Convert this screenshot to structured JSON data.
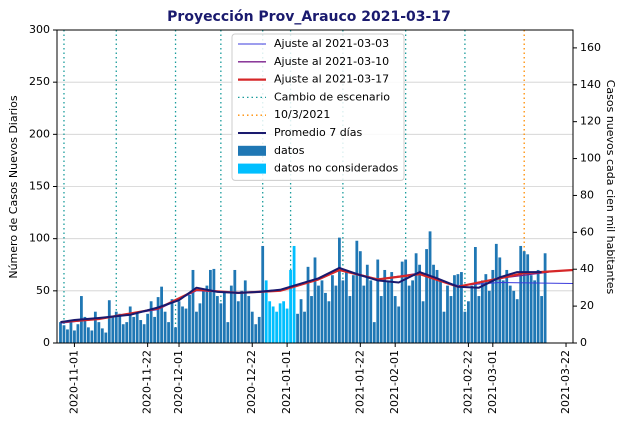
{
  "chart_data": {
    "type": "bar",
    "title": "Proyección Prov_Arauco 2021-03-17",
    "y_label": "Número de Casos Nuevos Diarios",
    "y2_label": "Casos nuevos cada cien mil habitantes",
    "xlim": [
      "2020-10-27",
      "2021-03-24"
    ],
    "xticks": [
      "2020-11-01",
      "2020-11-22",
      "2020-12-01",
      "2020-12-22",
      "2021-01-01",
      "2021-01-22",
      "2021-02-01",
      "2021-02-22",
      "2021-03-01",
      "2021-03-22"
    ],
    "ylim": [
      0,
      300
    ],
    "yticks": [
      0,
      50,
      100,
      150,
      200,
      250,
      300
    ],
    "y2lim": [
      0,
      169.7
    ],
    "y2ticks": [
      0,
      20,
      40,
      60,
      80,
      100,
      120,
      140,
      160
    ],
    "grid": true,
    "legend": "upper center",
    "series": [
      {
        "name": "Ajuste al 2021-03-03",
        "type": "line",
        "color": "#3b3bdc",
        "linewidth": 1,
        "x": [
          "2020-10-28",
          "2020-11-08",
          "2020-11-25",
          "2020-12-06",
          "2020-12-18",
          "2020-12-30",
          "2021-01-10",
          "2021-01-16",
          "2021-01-27",
          "2021-02-08",
          "2021-02-19",
          "2021-03-03",
          "2021-03-24"
        ],
        "values": [
          19,
          23,
          32,
          50,
          48,
          51,
          61,
          70,
          61,
          66,
          55,
          58,
          57
        ]
      },
      {
        "name": "Ajuste al 2021-03-10",
        "type": "line",
        "color": "#7b1f8c",
        "linewidth": 1.3,
        "x": [
          "2020-10-28",
          "2020-11-08",
          "2020-11-25",
          "2020-12-06",
          "2020-12-18",
          "2020-12-30",
          "2021-01-10",
          "2021-01-16",
          "2021-01-27",
          "2021-02-08",
          "2021-02-19",
          "2021-03-03",
          "2021-03-17"
        ],
        "values": [
          20,
          23,
          33,
          51,
          48,
          51,
          61,
          71,
          61,
          67,
          54,
          62,
          68
        ]
      },
      {
        "name": "Ajuste al 2021-03-17",
        "type": "line",
        "color": "#d62728",
        "linewidth": 2.2,
        "x": [
          "2020-10-28",
          "2020-11-08",
          "2020-11-25",
          "2020-12-06",
          "2020-12-18",
          "2020-12-30",
          "2021-01-10",
          "2021-01-16",
          "2021-01-27",
          "2021-02-08",
          "2021-02-19",
          "2021-03-03",
          "2021-03-10",
          "2021-03-24"
        ],
        "values": [
          20,
          23,
          33,
          51,
          48,
          50,
          61,
          70,
          61,
          66,
          54,
          62,
          67,
          70
        ]
      },
      {
        "name": "Cambio de escenario",
        "type": "vline",
        "color": "#1a9c9c",
        "x": [
          "2020-10-29",
          "2020-11-13",
          "2020-11-30",
          "2020-12-13",
          "2020-12-25",
          "2021-01-02",
          "2021-01-17",
          "2021-02-04",
          "2021-02-21"
        ]
      },
      {
        "name": "10/3/2021",
        "type": "vline",
        "color": "#ff8c00",
        "x": [
          "2021-03-10"
        ]
      },
      {
        "name": "Promedio 7 días",
        "type": "line",
        "color": "#1a1a6e",
        "linewidth": 2,
        "x": [
          "2020-10-28",
          "2020-11-01",
          "2020-11-08",
          "2020-11-17",
          "2020-11-25",
          "2020-12-01",
          "2020-12-06",
          "2020-12-12",
          "2020-12-18",
          "2020-12-24",
          "2020-12-30",
          "2021-01-04",
          "2021-01-10",
          "2021-01-16",
          "2021-01-22",
          "2021-01-27",
          "2021-02-02",
          "2021-02-08",
          "2021-02-13",
          "2021-02-19",
          "2021-02-25",
          "2021-03-03",
          "2021-03-08",
          "2021-03-15"
        ],
        "values": [
          20,
          22,
          24,
          27,
          34,
          41,
          53,
          49,
          48,
          49,
          51,
          56,
          62,
          72,
          65,
          60,
          58,
          68,
          62,
          54,
          53,
          63,
          68,
          68
        ]
      },
      {
        "name": "datos",
        "type": "bar",
        "color": "#1f77b4",
        "x": [
          "2020-10-28",
          "2020-10-29",
          "2020-10-30",
          "2020-10-31",
          "2020-11-01",
          "2020-11-02",
          "2020-11-03",
          "2020-11-04",
          "2020-11-05",
          "2020-11-06",
          "2020-11-07",
          "2020-11-08",
          "2020-11-09",
          "2020-11-10",
          "2020-11-11",
          "2020-11-12",
          "2020-11-13",
          "2020-11-14",
          "2020-11-15",
          "2020-11-16",
          "2020-11-17",
          "2020-11-18",
          "2020-11-19",
          "2020-11-20",
          "2020-11-21",
          "2020-11-22",
          "2020-11-23",
          "2020-11-24",
          "2020-11-25",
          "2020-11-26",
          "2020-11-27",
          "2020-11-28",
          "2020-11-29",
          "2020-11-30",
          "2020-12-01",
          "2020-12-02",
          "2020-12-03",
          "2020-12-04",
          "2020-12-05",
          "2020-12-06",
          "2020-12-07",
          "2020-12-08",
          "2020-12-09",
          "2020-12-10",
          "2020-12-11",
          "2020-12-12",
          "2020-12-13",
          "2020-12-14",
          "2020-12-15",
          "2020-12-16",
          "2020-12-17",
          "2020-12-18",
          "2020-12-19",
          "2020-12-20",
          "2020-12-21",
          "2020-12-22",
          "2020-12-23",
          "2020-12-24",
          "2020-12-25",
          "2021-01-04",
          "2021-01-05",
          "2021-01-06",
          "2021-01-07",
          "2021-01-08",
          "2021-01-09",
          "2021-01-10",
          "2021-01-11",
          "2021-01-12",
          "2021-01-13",
          "2021-01-14",
          "2021-01-15",
          "2021-01-16",
          "2021-01-17",
          "2021-01-18",
          "2021-01-19",
          "2021-01-20",
          "2021-01-21",
          "2021-01-22",
          "2021-01-23",
          "2021-01-24",
          "2021-01-25",
          "2021-01-26",
          "2021-01-27",
          "2021-01-28",
          "2021-01-29",
          "2021-01-30",
          "2021-01-31",
          "2021-02-01",
          "2021-02-02",
          "2021-02-03",
          "2021-02-04",
          "2021-02-05",
          "2021-02-06",
          "2021-02-07",
          "2021-02-08",
          "2021-02-09",
          "2021-02-10",
          "2021-02-11",
          "2021-02-12",
          "2021-02-13",
          "2021-02-14",
          "2021-02-15",
          "2021-02-16",
          "2021-02-17",
          "2021-02-18",
          "2021-02-19",
          "2021-02-20",
          "2021-02-21",
          "2021-02-22",
          "2021-02-23",
          "2021-02-24",
          "2021-02-25",
          "2021-02-26",
          "2021-02-27",
          "2021-02-28",
          "2021-03-01",
          "2021-03-02",
          "2021-03-03",
          "2021-03-04",
          "2021-03-05",
          "2021-03-06",
          "2021-03-07",
          "2021-03-08",
          "2021-03-09",
          "2021-03-10",
          "2021-03-11",
          "2021-03-12",
          "2021-03-13",
          "2021-03-14",
          "2021-03-15",
          "2021-03-16"
        ],
        "values": [
          20,
          17,
          13,
          22,
          12,
          18,
          45,
          25,
          15,
          12,
          30,
          20,
          14,
          10,
          41,
          26,
          30,
          28,
          18,
          20,
          35,
          25,
          30,
          22,
          18,
          28,
          40,
          25,
          44,
          54,
          30,
          20,
          42,
          15,
          40,
          35,
          33,
          46,
          70,
          30,
          38,
          52,
          55,
          70,
          71,
          45,
          38,
          48,
          20,
          55,
          70,
          40,
          50,
          60,
          45,
          30,
          18,
          25,
          93,
          28,
          42,
          30,
          73,
          45,
          82,
          55,
          60,
          48,
          40,
          65,
          55,
          101,
          60,
          70,
          45,
          65,
          98,
          88,
          55,
          75,
          60,
          20,
          80,
          45,
          70,
          60,
          68,
          45,
          35,
          78,
          80,
          55,
          60,
          86,
          75,
          40,
          90,
          107,
          75,
          70,
          60,
          30,
          55,
          45,
          65,
          66,
          68,
          30,
          40,
          55,
          92,
          45,
          60,
          66,
          50,
          70,
          95,
          82,
          60,
          70,
          55,
          50,
          42,
          93,
          88,
          85,
          65,
          60,
          70,
          45,
          86
        ]
      },
      {
        "name": "datos no considerados",
        "type": "bar",
        "color": "#00bfff",
        "x": [
          "2020-12-26",
          "2020-12-27",
          "2020-12-28",
          "2020-12-29",
          "2020-12-30",
          "2020-12-31",
          "2021-01-01",
          "2021-01-02",
          "2021-01-03"
        ],
        "values": [
          60,
          40,
          35,
          30,
          38,
          40,
          33,
          70,
          93
        ]
      }
    ]
  }
}
